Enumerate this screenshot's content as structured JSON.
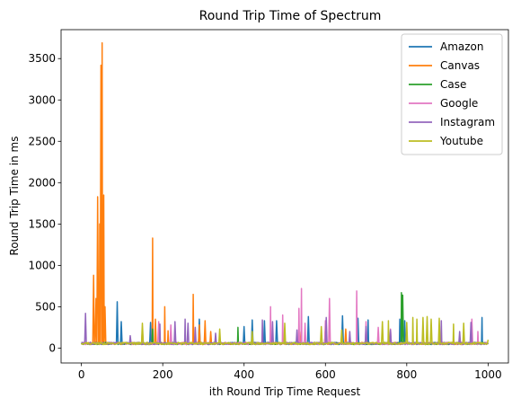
{
  "chart_data": {
    "type": "line",
    "title": "Round Trip Time of Spectrum",
    "xlabel": "ith Round Trip Time Request",
    "ylabel": "Round Trip Time in ms",
    "xlim": [
      -50,
      1050
    ],
    "ylim": [
      -180,
      3850
    ],
    "xticks": [
      0,
      200,
      400,
      600,
      800,
      1000
    ],
    "yticks": [
      0,
      500,
      1000,
      1500,
      2000,
      2500,
      3000,
      3500
    ],
    "grid": false,
    "legend_position": "top-right",
    "baseline_ms": 55,
    "series": [
      {
        "name": "Amazon",
        "color": "#1f77b4",
        "spikes": [
          [
            88,
            560
          ],
          [
            98,
            320
          ],
          [
            170,
            310
          ],
          [
            290,
            350
          ],
          [
            400,
            260
          ],
          [
            420,
            340
          ],
          [
            450,
            330
          ],
          [
            480,
            330
          ],
          [
            558,
            380
          ],
          [
            642,
            390
          ],
          [
            680,
            360
          ],
          [
            705,
            340
          ],
          [
            783,
            350
          ],
          [
            795,
            330
          ],
          [
            985,
            370
          ]
        ]
      },
      {
        "name": "Canvas",
        "color": "#ff7f0e",
        "spikes": [
          [
            30,
            880
          ],
          [
            36,
            600
          ],
          [
            40,
            1830
          ],
          [
            45,
            1500
          ],
          [
            48,
            3420
          ],
          [
            51,
            3690
          ],
          [
            55,
            1850
          ],
          [
            58,
            500
          ],
          [
            175,
            1330
          ],
          [
            182,
            350
          ],
          [
            205,
            500
          ],
          [
            213,
            210
          ],
          [
            275,
            650
          ],
          [
            290,
            280
          ],
          [
            304,
            330
          ],
          [
            318,
            200
          ],
          [
            540,
            200
          ],
          [
            650,
            230
          ]
        ]
      },
      {
        "name": "Case",
        "color": "#2ca02c",
        "spikes": [
          [
            175,
            230
          ],
          [
            385,
            250
          ],
          [
            600,
            230
          ],
          [
            787,
            670
          ],
          [
            790,
            640
          ]
        ]
      },
      {
        "name": "Google",
        "color": "#e377c2",
        "spikes": [
          [
            150,
            220
          ],
          [
            190,
            320
          ],
          [
            220,
            280
          ],
          [
            465,
            500
          ],
          [
            495,
            400
          ],
          [
            535,
            480
          ],
          [
            541,
            720
          ],
          [
            550,
            300
          ],
          [
            600,
            330
          ],
          [
            610,
            600
          ],
          [
            677,
            690
          ],
          [
            700,
            320
          ],
          [
            730,
            250
          ],
          [
            760,
            230
          ],
          [
            960,
            350
          ],
          [
            975,
            200
          ]
        ]
      },
      {
        "name": "Instagram",
        "color": "#9467bd",
        "spikes": [
          [
            10,
            420
          ],
          [
            120,
            150
          ],
          [
            193,
            290
          ],
          [
            230,
            320
          ],
          [
            255,
            350
          ],
          [
            262,
            300
          ],
          [
            280,
            250
          ],
          [
            330,
            180
          ],
          [
            445,
            340
          ],
          [
            470,
            320
          ],
          [
            530,
            220
          ],
          [
            602,
            370
          ],
          [
            660,
            200
          ],
          [
            700,
            260
          ],
          [
            760,
            220
          ],
          [
            885,
            330
          ],
          [
            930,
            200
          ],
          [
            958,
            310
          ]
        ]
      },
      {
        "name": "Youtube",
        "color": "#bcbd22",
        "spikes": [
          [
            150,
            300
          ],
          [
            340,
            230
          ],
          [
            420,
            200
          ],
          [
            500,
            300
          ],
          [
            590,
            260
          ],
          [
            640,
            220
          ],
          [
            740,
            320
          ],
          [
            755,
            330
          ],
          [
            800,
            310
          ],
          [
            815,
            370
          ],
          [
            825,
            350
          ],
          [
            840,
            370
          ],
          [
            850,
            380
          ],
          [
            860,
            350
          ],
          [
            880,
            360
          ],
          [
            915,
            290
          ],
          [
            940,
            300
          ],
          [
            1000,
            100
          ]
        ]
      }
    ]
  }
}
